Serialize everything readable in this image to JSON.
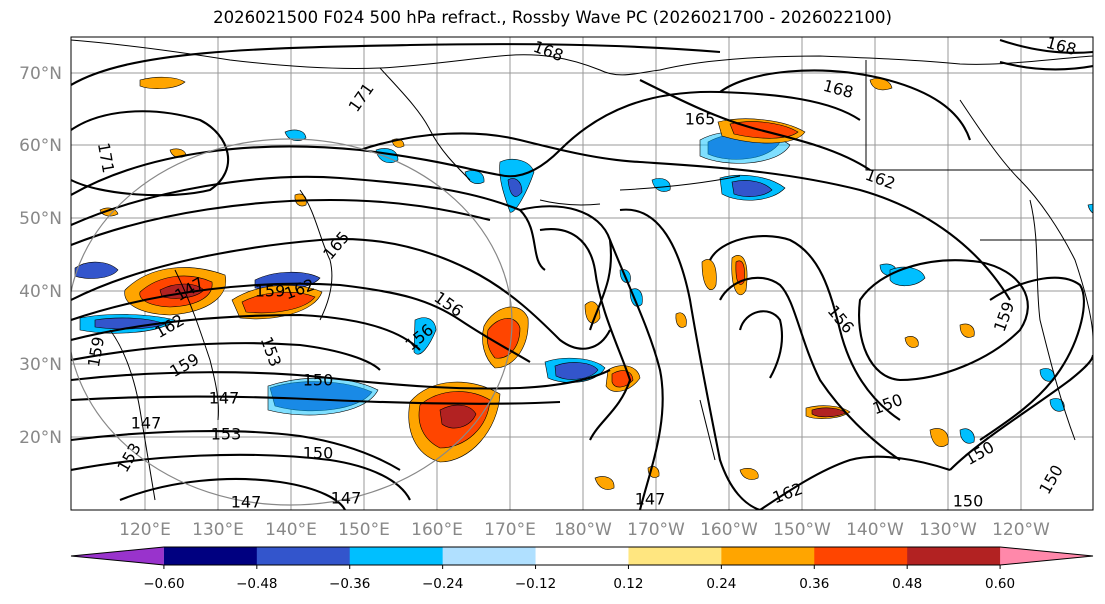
{
  "title": "2026021500 F024 500 hPa refract., Rossby Wave PC (2026021700 - 2026022100)",
  "map": {
    "latitude_labels": [
      "70°N",
      "60°N",
      "50°N",
      "40°N",
      "30°N",
      "20°N"
    ],
    "longitude_labels": [
      "120°E",
      "130°E",
      "140°E",
      "150°E",
      "160°E",
      "170°E",
      "180°W",
      "170°W",
      "160°W",
      "150°W",
      "140°W",
      "130°W",
      "120°W"
    ],
    "contour_labels": [
      {
        "text": "168"
      },
      {
        "text": "168"
      },
      {
        "text": "171"
      },
      {
        "text": "171"
      },
      {
        "text": "165"
      },
      {
        "text": "162"
      },
      {
        "text": "165"
      },
      {
        "text": "159"
      },
      {
        "text": "162"
      },
      {
        "text": "156"
      },
      {
        "text": "156"
      },
      {
        "text": "156"
      },
      {
        "text": "159"
      },
      {
        "text": "159"
      },
      {
        "text": "153"
      },
      {
        "text": "150"
      },
      {
        "text": "147"
      },
      {
        "text": "147"
      },
      {
        "text": "153"
      },
      {
        "text": "150"
      },
      {
        "text": "153"
      },
      {
        "text": "147"
      },
      {
        "text": "147"
      },
      {
        "text": "147"
      },
      {
        "text": "150"
      },
      {
        "text": "150"
      },
      {
        "text": "162"
      },
      {
        "text": "150"
      },
      {
        "text": "150"
      },
      {
        "text": "147"
      },
      {
        "text": "159"
      },
      {
        "text": "162"
      },
      {
        "text": "168"
      }
    ]
  },
  "colorbar": {
    "colors": [
      "#9933cc",
      "#000080",
      "#3355cc",
      "#00bfff",
      "#b0e0ff",
      "#ffffff",
      "#ffe680",
      "#ffa500",
      "#ff4500",
      "#b22222",
      "#ff88aa"
    ],
    "tick_labels": [
      "−0.60",
      "−0.48",
      "−0.36",
      "−0.24",
      "−0.12",
      "0.12",
      "0.24",
      "0.36",
      "0.48",
      "0.60"
    ]
  },
  "colors": {
    "contour": "#000000",
    "coast": "#000000",
    "grid": "#999999",
    "circle": "#888888"
  }
}
